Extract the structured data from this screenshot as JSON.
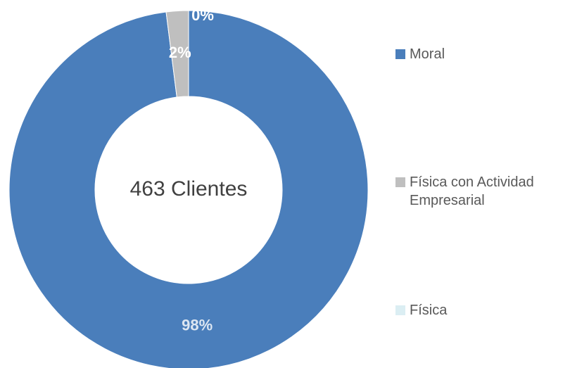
{
  "chart_data": {
    "type": "donut",
    "center_label": "463 Clientes",
    "categories": [
      "Moral",
      "Física con Actividad Empresarial",
      "Física"
    ],
    "values": [
      98,
      2,
      0
    ],
    "value_labels": [
      "98%",
      "2%",
      "0%"
    ],
    "colors": [
      "#4a7ebb",
      "#bfbfbf",
      "#dbeef3"
    ],
    "legend": "right"
  }
}
